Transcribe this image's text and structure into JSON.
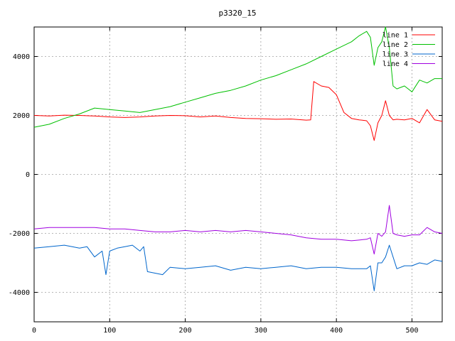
{
  "chart_data": {
    "type": "line",
    "title": "p3320_15",
    "xlabel": "",
    "ylabel": "",
    "xlim": [
      0,
      540
    ],
    "ylim": [
      -5000,
      5000
    ],
    "xticks": [
      0,
      100,
      200,
      300,
      400,
      500
    ],
    "yticks": [
      -4000,
      -2000,
      0,
      2000,
      4000
    ],
    "grid": true,
    "legend_position": "top-right",
    "series": [
      {
        "name": "line 1",
        "color": "#ff0000",
        "x": [
          0,
          20,
          40,
          60,
          80,
          100,
          120,
          140,
          160,
          180,
          200,
          220,
          240,
          260,
          280,
          300,
          320,
          340,
          360,
          366,
          370,
          380,
          390,
          400,
          410,
          420,
          430,
          440,
          445,
          450,
          455,
          460,
          465,
          470,
          475,
          480,
          490,
          500,
          510,
          520,
          530,
          540
        ],
        "y": [
          2000,
          1980,
          2010,
          2000,
          1980,
          1950,
          1930,
          1950,
          1980,
          2000,
          1990,
          1950,
          1980,
          1930,
          1900,
          1890,
          1870,
          1880,
          1840,
          1850,
          3150,
          3000,
          2950,
          2700,
          2100,
          1900,
          1850,
          1820,
          1650,
          1150,
          1750,
          2000,
          2500,
          2000,
          1850,
          1870,
          1850,
          1900,
          1750,
          2200,
          1850,
          1800
        ]
      },
      {
        "name": "line 2",
        "color": "#00c000",
        "x": [
          0,
          20,
          40,
          60,
          80,
          100,
          120,
          140,
          160,
          180,
          200,
          220,
          240,
          260,
          280,
          300,
          320,
          340,
          360,
          380,
          400,
          420,
          430,
          440,
          445,
          450,
          455,
          460,
          465,
          470,
          475,
          480,
          490,
          500,
          510,
          520,
          530,
          540
        ],
        "y": [
          1600,
          1700,
          1900,
          2050,
          2250,
          2200,
          2150,
          2100,
          2200,
          2300,
          2450,
          2600,
          2750,
          2850,
          3000,
          3200,
          3350,
          3550,
          3750,
          4000,
          4250,
          4500,
          4700,
          4850,
          4650,
          3700,
          4300,
          4500,
          5000,
          4300,
          3000,
          2900,
          3000,
          2800,
          3200,
          3100,
          3250,
          3250
        ]
      },
      {
        "name": "line 3",
        "color": "#0066cc",
        "x": [
          0,
          20,
          40,
          60,
          70,
          80,
          90,
          95,
          100,
          110,
          120,
          130,
          140,
          145,
          150,
          160,
          170,
          180,
          200,
          220,
          240,
          260,
          280,
          300,
          320,
          340,
          360,
          380,
          400,
          420,
          440,
          445,
          450,
          455,
          460,
          465,
          470,
          480,
          490,
          500,
          510,
          520,
          530,
          540
        ],
        "y": [
          -2500,
          -2450,
          -2400,
          -2500,
          -2450,
          -2800,
          -2600,
          -3400,
          -2600,
          -2500,
          -2450,
          -2400,
          -2600,
          -2450,
          -3300,
          -3350,
          -3400,
          -3150,
          -3200,
          -3150,
          -3100,
          -3250,
          -3150,
          -3200,
          -3150,
          -3100,
          -3200,
          -3150,
          -3150,
          -3200,
          -3200,
          -3100,
          -3950,
          -3000,
          -3000,
          -2800,
          -2400,
          -3200,
          -3100,
          -3100,
          -3000,
          -3050,
          -2900,
          -2950
        ]
      },
      {
        "name": "line 4",
        "color": "#a000e0",
        "x": [
          0,
          20,
          40,
          60,
          80,
          100,
          120,
          140,
          160,
          180,
          200,
          220,
          240,
          260,
          280,
          300,
          320,
          340,
          360,
          380,
          400,
          420,
          440,
          445,
          450,
          455,
          460,
          465,
          470,
          475,
          480,
          490,
          500,
          510,
          520,
          530,
          540
        ],
        "y": [
          -1850,
          -1800,
          -1800,
          -1800,
          -1800,
          -1850,
          -1850,
          -1900,
          -1950,
          -1950,
          -1900,
          -1950,
          -1900,
          -1950,
          -1900,
          -1950,
          -2000,
          -2050,
          -2150,
          -2200,
          -2200,
          -2250,
          -2200,
          -2150,
          -2700,
          -2000,
          -2100,
          -1950,
          -1050,
          -2000,
          -2050,
          -2100,
          -2050,
          -2050,
          -1800,
          -1950,
          -2000
        ]
      }
    ]
  }
}
